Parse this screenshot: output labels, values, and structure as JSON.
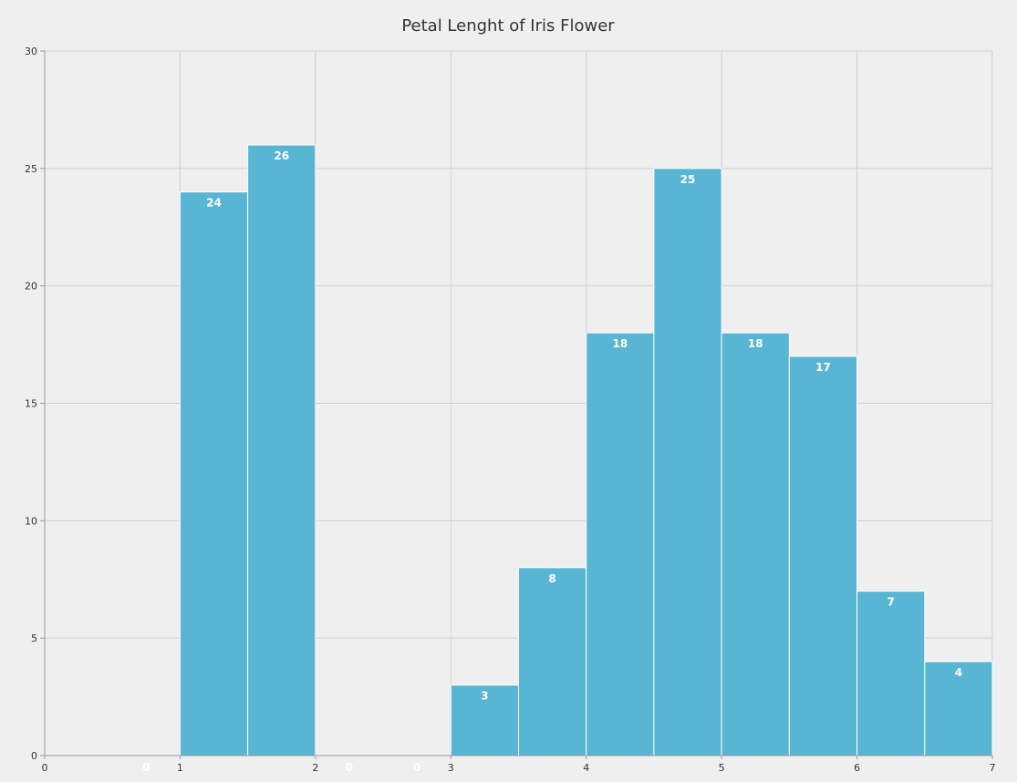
{
  "chart_data": {
    "type": "bar",
    "title": "Petal Lenght of Iris Flower",
    "xlabel": "",
    "ylabel": "",
    "xlim": [
      0,
      7
    ],
    "ylim": [
      0,
      30
    ],
    "x_ticks": [
      0,
      1,
      2,
      3,
      4,
      5,
      6,
      7
    ],
    "y_ticks": [
      0,
      5,
      10,
      15,
      20,
      25,
      30
    ],
    "grid": true,
    "bin_width": 0.5,
    "bins": [
      {
        "x0": 0.5,
        "x1": 1.0,
        "value": 0
      },
      {
        "x0": 1.0,
        "x1": 1.5,
        "value": 24
      },
      {
        "x0": 1.5,
        "x1": 2.0,
        "value": 26
      },
      {
        "x0": 2.0,
        "x1": 2.5,
        "value": 0
      },
      {
        "x0": 2.5,
        "x1": 3.0,
        "value": 0
      },
      {
        "x0": 3.0,
        "x1": 3.5,
        "value": 3
      },
      {
        "x0": 3.5,
        "x1": 4.0,
        "value": 8
      },
      {
        "x0": 4.0,
        "x1": 4.5,
        "value": 18
      },
      {
        "x0": 4.5,
        "x1": 5.0,
        "value": 25
      },
      {
        "x0": 5.0,
        "x1": 5.5,
        "value": 18
      },
      {
        "x0": 5.5,
        "x1": 6.0,
        "value": 17
      },
      {
        "x0": 6.0,
        "x1": 6.5,
        "value": 7
      },
      {
        "x0": 6.5,
        "x1": 7.0,
        "value": 4
      }
    ],
    "bar_color": "#58b5d3",
    "label_color": "#ffffff"
  }
}
